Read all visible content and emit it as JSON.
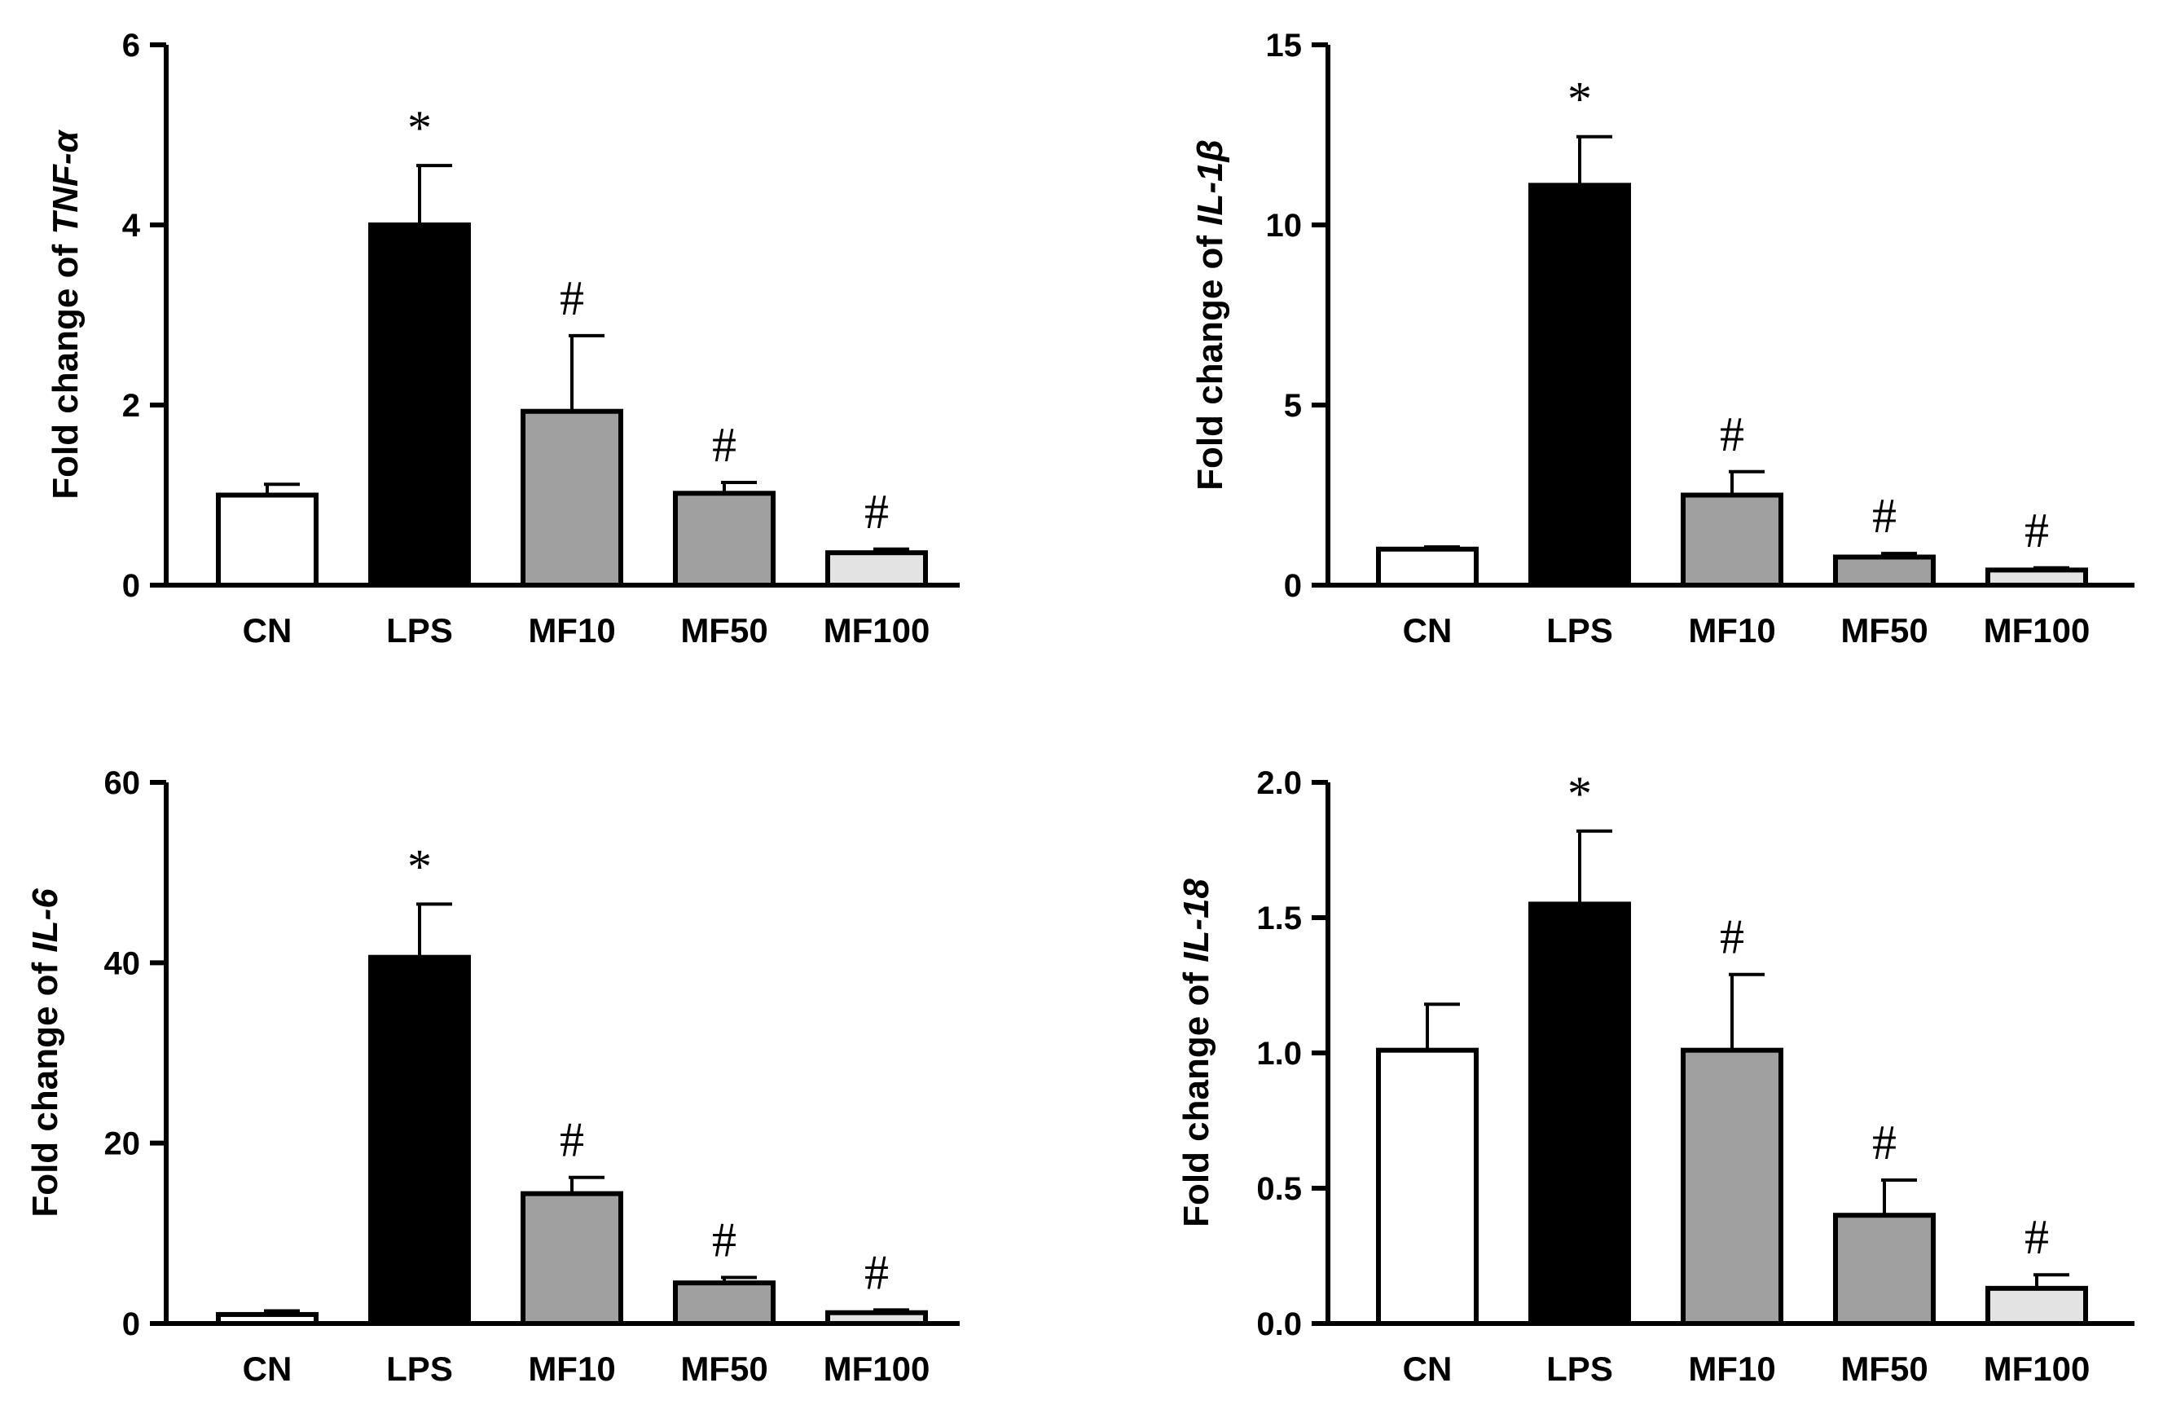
{
  "figure": {
    "description_panels": 4
  },
  "chart_data": [
    {
      "type": "bar",
      "ylabel_prefix": "Fold change of ",
      "ylabel_gene": "TNF-α",
      "categories": [
        "CN",
        "LPS",
        "MF10",
        "MF50",
        "MF100"
      ],
      "values": [
        1.0,
        4.0,
        1.93,
        1.02,
        0.36
      ],
      "errors": [
        0.12,
        0.66,
        0.84,
        0.12,
        0.04
      ],
      "markers": [
        "",
        "*",
        "#",
        "#",
        "#"
      ],
      "colors": [
        "#ffffff",
        "#000000",
        "#a0a0a0",
        "#a0a0a0",
        "#e3e3e3"
      ],
      "ylim": [
        0,
        6
      ],
      "yticks": [
        0,
        2,
        4,
        6
      ],
      "ytick_labels": [
        "0",
        "2",
        "4",
        "6"
      ]
    },
    {
      "type": "bar",
      "ylabel_prefix": "Fold change of ",
      "ylabel_gene": "IL-1β",
      "categories": [
        "CN",
        "LPS",
        "MF10",
        "MF50",
        "MF100"
      ],
      "values": [
        1.0,
        11.1,
        2.5,
        0.78,
        0.42
      ],
      "errors": [
        0.06,
        1.35,
        0.65,
        0.1,
        0.06
      ],
      "markers": [
        "",
        "*",
        "#",
        "#",
        "#"
      ],
      "colors": [
        "#ffffff",
        "#000000",
        "#a0a0a0",
        "#a0a0a0",
        "#e3e3e3"
      ],
      "ylim": [
        0,
        15
      ],
      "yticks": [
        0,
        5,
        10,
        15
      ],
      "ytick_labels": [
        "0",
        "5",
        "10",
        "15"
      ]
    },
    {
      "type": "bar",
      "ylabel_prefix": "Fold change of ",
      "ylabel_gene": "IL-6",
      "categories": [
        "CN",
        "LPS",
        "MF10",
        "MF50",
        "MF100"
      ],
      "values": [
        1.0,
        40.6,
        14.4,
        4.5,
        1.2
      ],
      "errors": [
        0.4,
        5.9,
        1.8,
        0.6,
        0.3
      ],
      "markers": [
        "",
        "*",
        "#",
        "#",
        "#"
      ],
      "colors": [
        "#ffffff",
        "#000000",
        "#a0a0a0",
        "#a0a0a0",
        "#e3e3e3"
      ],
      "ylim": [
        0,
        60
      ],
      "yticks": [
        0,
        20,
        40,
        60
      ],
      "ytick_labels": [
        "0",
        "20",
        "40",
        "60"
      ]
    },
    {
      "type": "bar",
      "ylabel_prefix": "Fold change of ",
      "ylabel_gene": "IL-18",
      "categories": [
        "CN",
        "LPS",
        "MF10",
        "MF50",
        "MF100"
      ],
      "values": [
        1.01,
        1.55,
        1.01,
        0.4,
        0.13
      ],
      "errors": [
        0.17,
        0.27,
        0.28,
        0.13,
        0.05
      ],
      "markers": [
        "",
        "*",
        "#",
        "#",
        "#"
      ],
      "colors": [
        "#ffffff",
        "#000000",
        "#a0a0a0",
        "#a0a0a0",
        "#e3e3e3"
      ],
      "ylim": [
        0,
        2.0
      ],
      "yticks": [
        0,
        0.5,
        1.0,
        1.5,
        2.0
      ],
      "ytick_labels": [
        "0.0",
        "0.5",
        "1.0",
        "1.5",
        "2.0"
      ]
    }
  ]
}
